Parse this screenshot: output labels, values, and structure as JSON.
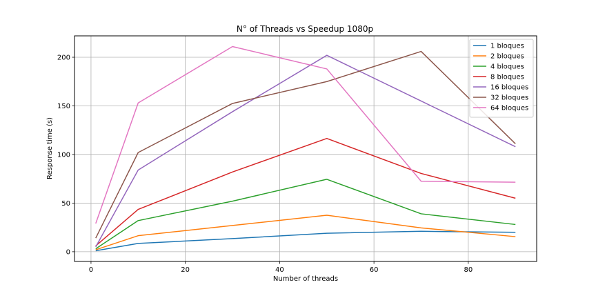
{
  "chart_data": {
    "type": "line",
    "title": "N° of Threads vs Speedup 1080p",
    "xlabel": "Number of threads",
    "ylabel": "Response time (s)",
    "x": [
      1,
      10,
      30,
      50,
      70,
      90
    ],
    "xlim": [
      -3.5,
      94.5
    ],
    "ylim": [
      -10,
      222
    ],
    "xticks": [
      0,
      20,
      40,
      60,
      80
    ],
    "yticks": [
      0,
      50,
      100,
      150,
      200
    ],
    "grid": true,
    "legend_position": "top-right",
    "series": [
      {
        "name": "1 bloques",
        "color": "#1f77b4",
        "values": [
          1,
          8.5,
          13.5,
          19,
          21,
          20
        ]
      },
      {
        "name": "2 bloques",
        "color": "#ff7f0e",
        "values": [
          2,
          16.5,
          27,
          37.5,
          24.5,
          15.5
        ]
      },
      {
        "name": "4 bloques",
        "color": "#2ca02c",
        "values": [
          3,
          32,
          52,
          74.5,
          39,
          28
        ]
      },
      {
        "name": "8 bloques",
        "color": "#d62728",
        "values": [
          6,
          43.5,
          82,
          116.5,
          80.5,
          55
        ]
      },
      {
        "name": "16 bloques",
        "color": "#9467bd",
        "values": [
          5,
          84,
          144,
          202,
          155,
          108
        ]
      },
      {
        "name": "32 bloques",
        "color": "#8c564b",
        "values": [
          14,
          102,
          152.5,
          175,
          206,
          111
        ]
      },
      {
        "name": "64 bloques",
        "color": "#e377c2",
        "values": [
          29,
          153,
          211,
          188,
          72.5,
          71.5
        ]
      }
    ]
  }
}
